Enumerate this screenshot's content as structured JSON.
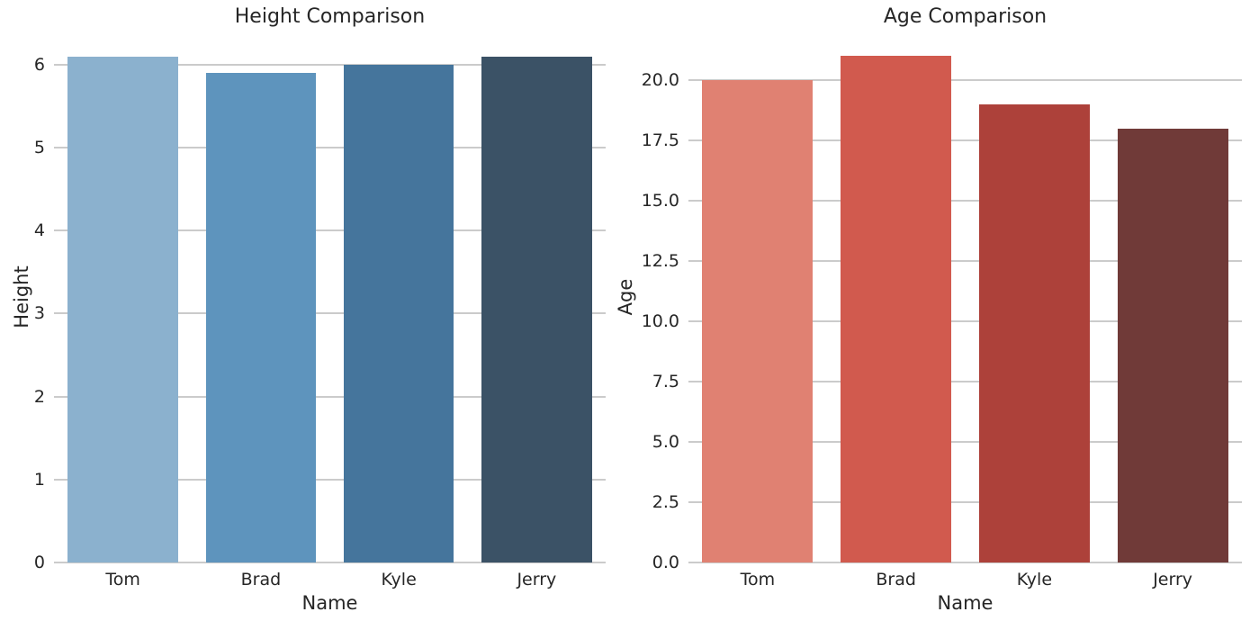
{
  "figure": {
    "background": "#ffffff",
    "grid_color": "#cbcbcb",
    "text_color": "#262626"
  },
  "chart_data": [
    {
      "type": "bar",
      "title": "Height Comparison",
      "xlabel": "Name",
      "ylabel": "Height",
      "categories": [
        "Tom",
        "Brad",
        "Kyle",
        "Jerry"
      ],
      "values": [
        6.1,
        5.9,
        6.0,
        6.1
      ],
      "bar_colors": [
        "#8bb1ce",
        "#5e94bd",
        "#45759c",
        "#3b5266"
      ],
      "yticks": [
        0,
        1,
        2,
        3,
        4,
        5,
        6
      ],
      "ytick_labels": [
        "0",
        "1",
        "2",
        "3",
        "4",
        "5",
        "6"
      ],
      "ylim": [
        0,
        6.41
      ],
      "grid": "horizontal-gridlines",
      "legend": "none"
    },
    {
      "type": "bar",
      "title": "Age Comparison",
      "xlabel": "Name",
      "ylabel": "Age",
      "categories": [
        "Tom",
        "Brad",
        "Kyle",
        "Jerry"
      ],
      "values": [
        20,
        21,
        19,
        18
      ],
      "bar_colors": [
        "#e08172",
        "#d15a4e",
        "#ad413a",
        "#703a38"
      ],
      "yticks": [
        0,
        2.5,
        5,
        7.5,
        10,
        12.5,
        15,
        17.5,
        20
      ],
      "ytick_labels": [
        "0.0",
        "2.5",
        "5.0",
        "7.5",
        "10.0",
        "12.5",
        "15.0",
        "17.5",
        "20.0"
      ],
      "ylim": [
        0,
        22.05
      ],
      "grid": "horizontal-gridlines",
      "legend": "none"
    }
  ]
}
